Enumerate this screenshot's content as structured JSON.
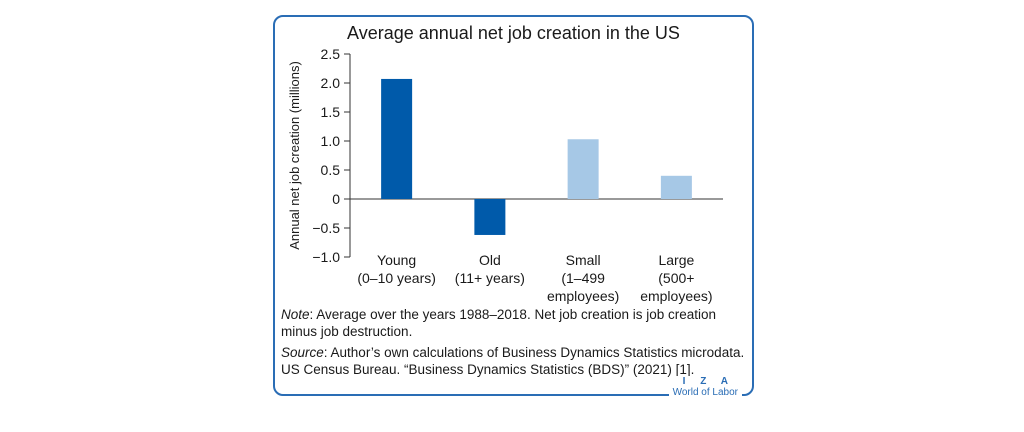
{
  "chart_data": {
    "type": "bar",
    "title": "Average annual net job creation in the US",
    "ylabel": "Annual net job creation (millions)",
    "xlabel": "",
    "ylim": [
      -1.0,
      2.5
    ],
    "yticks": [
      "2.5",
      "2.0",
      "1.5",
      "1.0",
      "0.5",
      "0",
      "−0.5",
      "−1.0"
    ],
    "ytick_values": [
      2.5,
      2.0,
      1.5,
      1.0,
      0.5,
      0,
      -0.5,
      -1.0
    ],
    "categories": [
      [
        "Young",
        "(0–10 years)"
      ],
      [
        "Old",
        "(11+ years)"
      ],
      [
        "Small",
        "(1–499",
        "employees)"
      ],
      [
        "Large",
        "(500+",
        "employees)"
      ]
    ],
    "values": [
      2.07,
      -0.62,
      1.03,
      0.4
    ],
    "bar_colors": [
      "#005aaa",
      "#005aaa",
      "#a6c8e6",
      "#a6c8e6"
    ],
    "grid": false,
    "legend": "none"
  },
  "notes": {
    "note_label": "Note",
    "note_text": ": Average over the years 1988–2018. Net job creation is job creation minus job destruction.",
    "source_label": "Source",
    "source_text": ": Author’s own calculations of Business Dynamics Statistics microdata. US Census Bureau. “Business Dynamics Statistics (BDS)” (2021) [1]."
  },
  "logo": {
    "top": "I Z A",
    "bottom": "World of Labor"
  },
  "colors": {
    "frame": "#2a6db5",
    "dark_bar": "#005aaa",
    "light_bar": "#a6c8e6"
  }
}
